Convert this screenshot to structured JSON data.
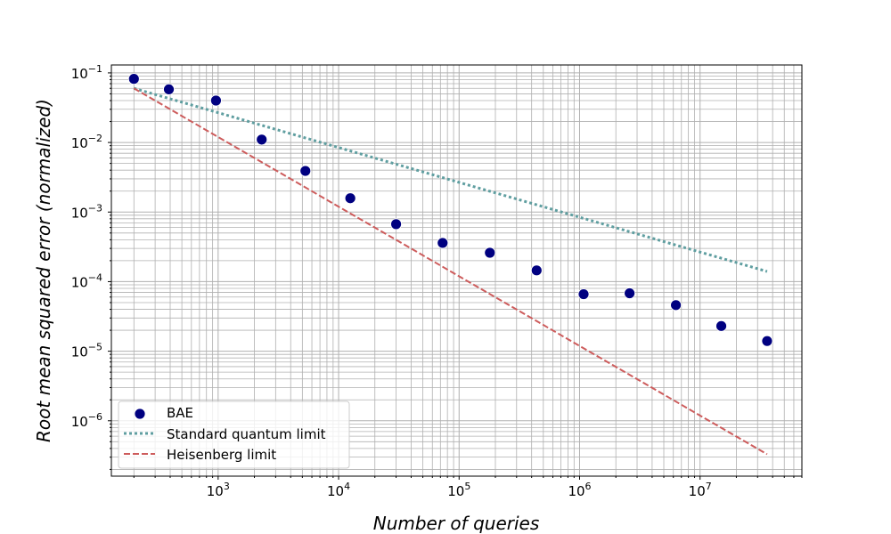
{
  "chart_data": {
    "type": "scatter",
    "title": "",
    "xlabel": "Number of queries",
    "ylabel": "Root mean squared error (normalized)",
    "xscale": "log",
    "yscale": "log",
    "xlim": [
      130,
      70000000
    ],
    "ylim": [
      1.6e-07,
      0.13
    ],
    "grid": "both-major-minor",
    "legend_position": "lower-left",
    "x_ticks": [
      {
        "value": 1000,
        "base": "10",
        "exp": "3"
      },
      {
        "value": 10000,
        "base": "10",
        "exp": "4"
      },
      {
        "value": 100000,
        "base": "10",
        "exp": "5"
      },
      {
        "value": 1000000,
        "base": "10",
        "exp": "6"
      },
      {
        "value": 10000000,
        "base": "10",
        "exp": "7"
      }
    ],
    "y_ticks": [
      {
        "value": 0.1,
        "base": "10",
        "exp": "−1"
      },
      {
        "value": 0.01,
        "base": "10",
        "exp": "−2"
      },
      {
        "value": 0.001,
        "base": "10",
        "exp": "−3"
      },
      {
        "value": 0.0001,
        "base": "10",
        "exp": "−4"
      },
      {
        "value": 1e-05,
        "base": "10",
        "exp": "−5"
      },
      {
        "value": 1e-06,
        "base": "10",
        "exp": "−6"
      }
    ],
    "series": [
      {
        "name": "BAE",
        "kind": "scatter",
        "color": "#000080",
        "x": [
          200,
          390,
          960,
          2300,
          5300,
          12500,
          30000,
          73000,
          180000,
          440000,
          1080000,
          2600000,
          6300000,
          15000000,
          36000000
        ],
        "y": [
          0.082,
          0.058,
          0.04,
          0.011,
          0.0039,
          0.00158,
          0.00067,
          0.00036,
          0.00026,
          0.000145,
          6.6e-05,
          6.8e-05,
          4.6e-05,
          2.3e-05,
          1.4e-05
        ]
      },
      {
        "name": "Standard quantum limit",
        "kind": "line",
        "style": "dotted",
        "color": "#5f9ea0",
        "x": [
          200,
          36000000
        ],
        "y": [
          0.06,
          0.00014
        ]
      },
      {
        "name": "Heisenberg limit",
        "kind": "line",
        "style": "dashed",
        "color": "#cd5c5c",
        "x": [
          200,
          36000000
        ],
        "y": [
          0.06,
          3.3e-07
        ]
      }
    ]
  }
}
